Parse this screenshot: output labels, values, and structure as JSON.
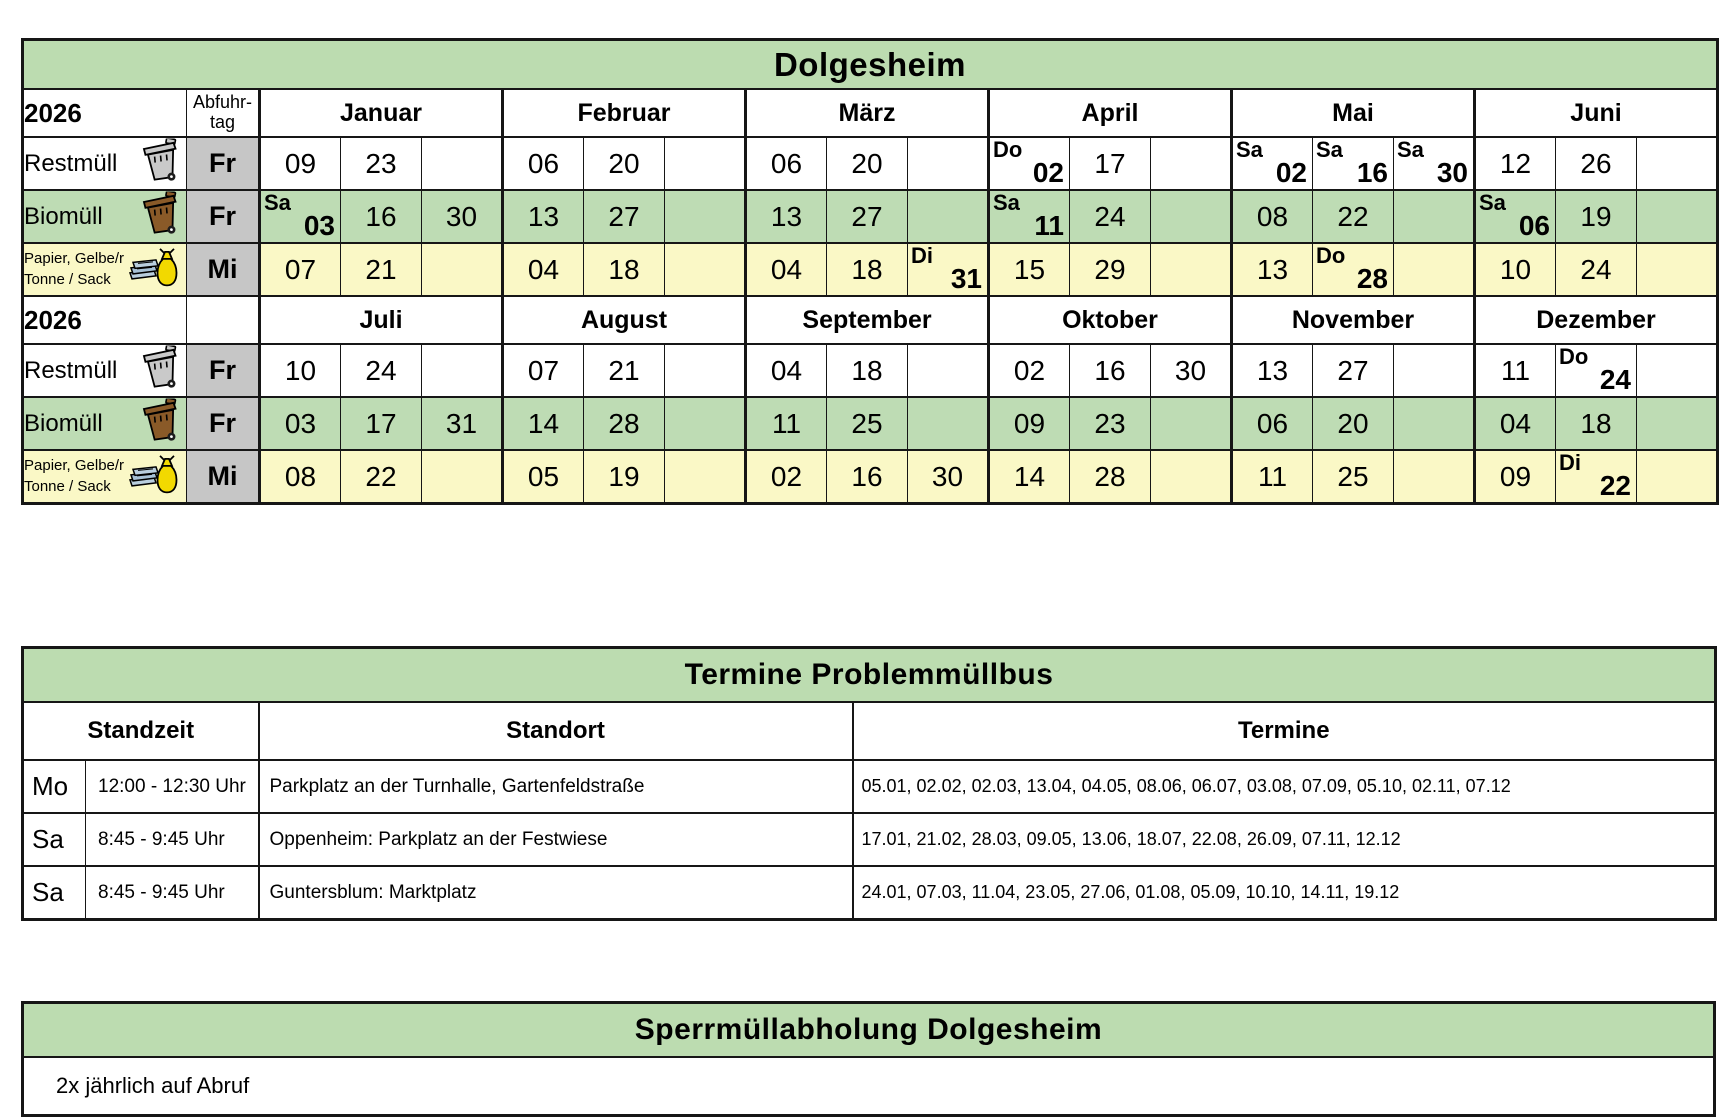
{
  "colors": {
    "header_green": "#bcdcb0",
    "row_green": "#bedcb4",
    "row_yellow": "#faf8c6",
    "day_column_gray": "#c6c6c6"
  },
  "calendar": {
    "title": "Dolgesheim",
    "day_header_lines": [
      "Abfuhr-",
      "tag"
    ],
    "halves": [
      {
        "year": "2026",
        "month_names": [
          "Januar",
          "Februar",
          "März",
          "April",
          "Mai",
          "Juni"
        ],
        "rows": [
          {
            "key": "restmuell",
            "label_lines": [
              "Restmüll"
            ],
            "icon": "gray-bin-icon",
            "day": "Fr",
            "bg": "white",
            "months": [
              [
                {
                  "day": "09"
                },
                {
                  "day": "23"
                },
                null
              ],
              [
                {
                  "day": "06"
                },
                {
                  "day": "20"
                },
                null
              ],
              [
                {
                  "day": "06"
                },
                {
                  "day": "20"
                },
                null
              ],
              [
                {
                  "prefix": "Do",
                  "day": "02"
                },
                {
                  "day": "17"
                },
                null
              ],
              [
                {
                  "prefix": "Sa",
                  "day": "02"
                },
                {
                  "prefix": "Sa",
                  "day": "16"
                },
                {
                  "prefix": "Sa",
                  "day": "30"
                }
              ],
              [
                {
                  "day": "12"
                },
                {
                  "day": "26"
                },
                null
              ]
            ]
          },
          {
            "key": "biomuell",
            "label_lines": [
              "Biomüll"
            ],
            "icon": "brown-bin-icon",
            "day": "Fr",
            "bg": "green",
            "months": [
              [
                {
                  "prefix": "Sa",
                  "day": "03"
                },
                {
                  "day": "16"
                },
                {
                  "day": "30"
                }
              ],
              [
                {
                  "day": "13"
                },
                {
                  "day": "27"
                },
                null
              ],
              [
                {
                  "day": "13"
                },
                {
                  "day": "27"
                },
                null
              ],
              [
                {
                  "prefix": "Sa",
                  "day": "11"
                },
                {
                  "day": "24"
                },
                null
              ],
              [
                {
                  "day": "08"
                },
                {
                  "day": "22"
                },
                null
              ],
              [
                {
                  "prefix": "Sa",
                  "day": "06"
                },
                {
                  "day": "19"
                },
                null
              ]
            ]
          },
          {
            "key": "papier",
            "label_lines": [
              "Papier, Gelbe/r",
              "Tonne / Sack"
            ],
            "icon": "paper-sack-icon",
            "day": "Mi",
            "bg": "yellow",
            "months": [
              [
                {
                  "day": "07"
                },
                {
                  "day": "21"
                },
                null
              ],
              [
                {
                  "day": "04"
                },
                {
                  "day": "18"
                },
                null
              ],
              [
                {
                  "day": "04"
                },
                {
                  "day": "18"
                },
                {
                  "prefix": "Di",
                  "day": "31"
                }
              ],
              [
                {
                  "day": "15"
                },
                {
                  "day": "29"
                },
                null
              ],
              [
                {
                  "day": "13"
                },
                {
                  "prefix": "Do",
                  "day": "28"
                },
                null
              ],
              [
                {
                  "day": "10"
                },
                {
                  "day": "24"
                },
                null
              ]
            ]
          }
        ]
      },
      {
        "year": "2026",
        "month_names": [
          "Juli",
          "August",
          "September",
          "Oktober",
          "November",
          "Dezember"
        ],
        "rows": [
          {
            "key": "restmuell",
            "label_lines": [
              "Restmüll"
            ],
            "icon": "gray-bin-icon",
            "day": "Fr",
            "bg": "white",
            "months": [
              [
                {
                  "day": "10"
                },
                {
                  "day": "24"
                },
                null
              ],
              [
                {
                  "day": "07"
                },
                {
                  "day": "21"
                },
                null
              ],
              [
                {
                  "day": "04"
                },
                {
                  "day": "18"
                },
                null
              ],
              [
                {
                  "day": "02"
                },
                {
                  "day": "16"
                },
                {
                  "day": "30"
                }
              ],
              [
                {
                  "day": "13"
                },
                {
                  "day": "27"
                },
                null
              ],
              [
                {
                  "day": "11"
                },
                {
                  "prefix": "Do",
                  "day": "24"
                },
                null
              ]
            ]
          },
          {
            "key": "biomuell",
            "label_lines": [
              "Biomüll"
            ],
            "icon": "brown-bin-icon",
            "day": "Fr",
            "bg": "green",
            "months": [
              [
                {
                  "day": "03"
                },
                {
                  "day": "17"
                },
                {
                  "day": "31"
                }
              ],
              [
                {
                  "day": "14"
                },
                {
                  "day": "28"
                },
                null
              ],
              [
                {
                  "day": "11"
                },
                {
                  "day": "25"
                },
                null
              ],
              [
                {
                  "day": "09"
                },
                {
                  "day": "23"
                },
                null
              ],
              [
                {
                  "day": "06"
                },
                {
                  "day": "20"
                },
                null
              ],
              [
                {
                  "day": "04"
                },
                {
                  "day": "18"
                },
                null
              ]
            ]
          },
          {
            "key": "papier",
            "label_lines": [
              "Papier, Gelbe/r",
              "Tonne / Sack"
            ],
            "icon": "paper-sack-icon",
            "day": "Mi",
            "bg": "yellow",
            "months": [
              [
                {
                  "day": "08"
                },
                {
                  "day": "22"
                },
                null
              ],
              [
                {
                  "day": "05"
                },
                {
                  "day": "19"
                },
                null
              ],
              [
                {
                  "day": "02"
                },
                {
                  "day": "16"
                },
                {
                  "day": "30"
                }
              ],
              [
                {
                  "day": "14"
                },
                {
                  "day": "28"
                },
                null
              ],
              [
                {
                  "day": "11"
                },
                {
                  "day": "25"
                },
                null
              ],
              [
                {
                  "day": "09"
                },
                {
                  "prefix": "Di",
                  "day": "22"
                },
                null
              ]
            ]
          }
        ]
      }
    ]
  },
  "problembus": {
    "title": "Termine Problemmüllbus",
    "headers": {
      "standzeit": "Standzeit",
      "standort": "Standort",
      "termine": "Termine"
    },
    "rows": [
      {
        "day": "Mo",
        "time": "12:00 - 12:30 Uhr",
        "location": "Parkplatz an der Turnhalle, Gartenfeldstraße",
        "dates": "05.01, 02.02, 02.03, 13.04, 04.05, 08.06, 06.07, 03.08, 07.09, 05.10, 02.11, 07.12"
      },
      {
        "day": "Sa",
        "time": "8:45 - 9:45 Uhr",
        "location": "Oppenheim: Parkplatz an der Festwiese",
        "dates": "17.01, 21.02, 28.03, 09.05, 13.06, 18.07, 22.08, 26.09, 07.11, 12.12"
      },
      {
        "day": "Sa",
        "time": "8:45 - 9:45 Uhr",
        "location": "Guntersblum: Marktplatz",
        "dates": "24.01, 07.03, 11.04, 23.05, 27.06, 01.08, 05.09, 10.10, 14.11, 19.12"
      }
    ]
  },
  "sperrmuell": {
    "title": "Sperrmüllabholung Dolgesheim",
    "note": "2x jährlich auf Abruf"
  }
}
